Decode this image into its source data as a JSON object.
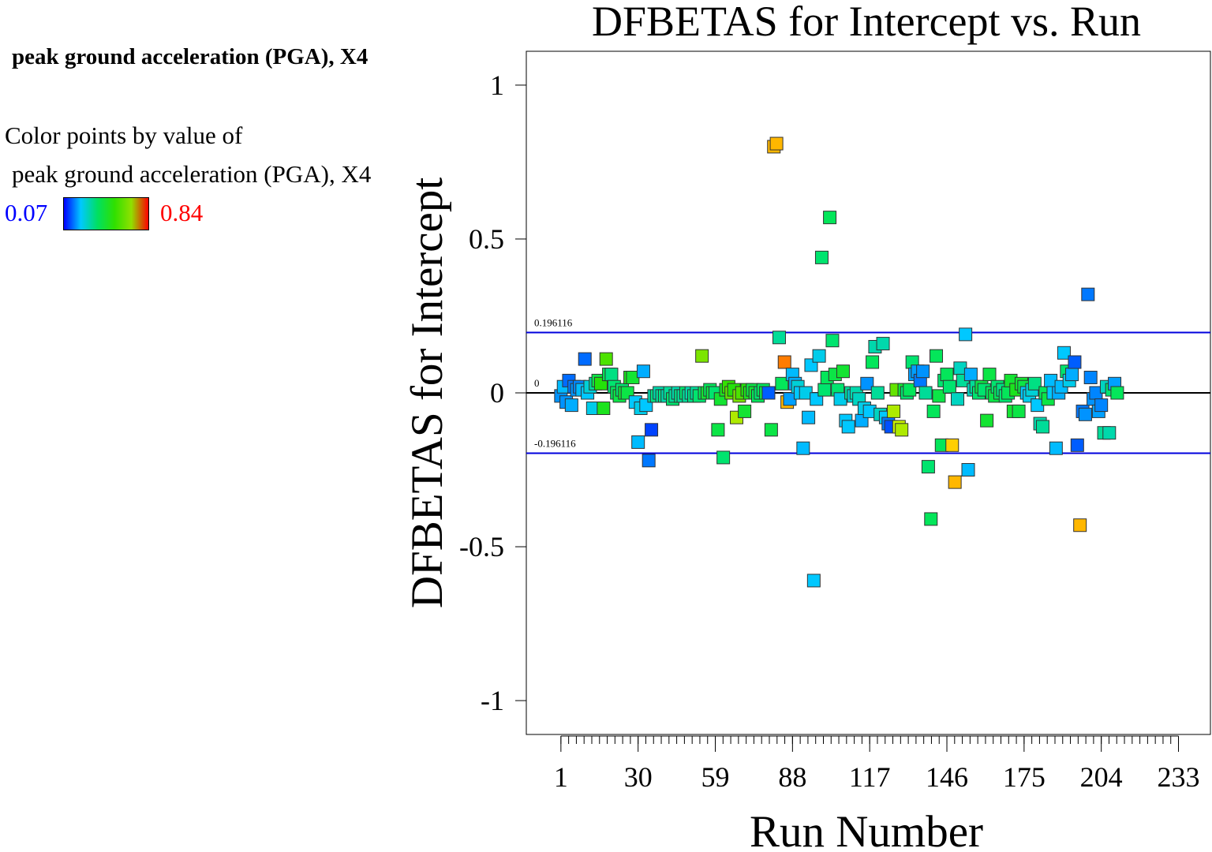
{
  "legend": {
    "title": "peak ground acceleration (PGA), X4",
    "desc_line1": "Color points by value of",
    "desc_line2": "peak ground acceleration (PGA), X4",
    "min_label": "0.07",
    "max_label": "0.84",
    "min_value": 0.07,
    "max_value": 0.84,
    "min_color": "#0000ff",
    "max_color": "#ff0000",
    "gradient_stops": [
      "#0000ff",
      "#00c8ff",
      "#00e060",
      "#30e000",
      "#90e000",
      "#ff0000"
    ]
  },
  "chart_data": {
    "type": "scatter",
    "title": "DFBETAS for Intercept vs. Run",
    "xlabel": "Run Number",
    "ylabel": "DFBETAS for Intercept",
    "xlim": [
      -12,
      245
    ],
    "ylim": [
      -1.11,
      1.11
    ],
    "x_ticks": [
      1,
      30,
      59,
      88,
      117,
      146,
      175,
      204,
      233
    ],
    "x_tick_labels": [
      "1",
      "30",
      "59",
      "88",
      "117",
      "146",
      "175",
      "204",
      "233"
    ],
    "y_ticks": [
      1,
      0.5,
      0,
      -0.5,
      -1
    ],
    "y_tick_labels": [
      "1",
      "0.5",
      "0",
      "-0.5",
      "-1"
    ],
    "reference_lines": [
      {
        "value": 0.196116,
        "label": "0.196116",
        "color": "#0000dd"
      },
      {
        "value": 0,
        "label": "0",
        "color": "#000000"
      },
      {
        "value": -0.196116,
        "label": "-0.196116",
        "color": "#0000dd"
      }
    ],
    "points": [
      [
        1,
        -0.01,
        0.22
      ],
      [
        2,
        0.02,
        0.28
      ],
      [
        3,
        -0.03,
        0.22
      ],
      [
        4,
        0.04,
        0.16
      ],
      [
        5,
        -0.04,
        0.26
      ],
      [
        6,
        0.02,
        0.18
      ],
      [
        7,
        0.01,
        0.22
      ],
      [
        8,
        0.02,
        0.2
      ],
      [
        9,
        0.01,
        0.28
      ],
      [
        10,
        0.11,
        0.16
      ],
      [
        11,
        0.0,
        0.3
      ],
      [
        12,
        0.02,
        0.34
      ],
      [
        13,
        -0.05,
        0.32
      ],
      [
        14,
        0.03,
        0.4
      ],
      [
        15,
        0.04,
        0.48
      ],
      [
        16,
        0.03,
        0.54
      ],
      [
        17,
        -0.05,
        0.52
      ],
      [
        18,
        0.11,
        0.58
      ],
      [
        19,
        0.06,
        0.46
      ],
      [
        20,
        0.06,
        0.42
      ],
      [
        21,
        0.02,
        0.44
      ],
      [
        22,
        0.0,
        0.46
      ],
      [
        23,
        -0.01,
        0.48
      ],
      [
        24,
        0.01,
        0.44
      ],
      [
        25,
        0.0,
        0.5
      ],
      [
        26,
        0.0,
        0.48
      ],
      [
        27,
        0.05,
        0.52
      ],
      [
        28,
        0.05,
        0.5
      ],
      [
        29,
        -0.03,
        0.3
      ],
      [
        30,
        -0.16,
        0.28
      ],
      [
        31,
        -0.05,
        0.32
      ],
      [
        32,
        0.07,
        0.26
      ],
      [
        33,
        -0.04,
        0.3
      ],
      [
        34,
        -0.22,
        0.18
      ],
      [
        35,
        -0.12,
        0.1
      ],
      [
        36,
        -0.01,
        0.38
      ],
      [
        37,
        -0.01,
        0.42
      ],
      [
        38,
        0.0,
        0.38
      ],
      [
        39,
        -0.01,
        0.4
      ],
      [
        40,
        -0.01,
        0.42
      ],
      [
        41,
        -0.01,
        0.38
      ],
      [
        42,
        0.0,
        0.4
      ],
      [
        43,
        -0.02,
        0.44
      ],
      [
        44,
        -0.01,
        0.4
      ],
      [
        45,
        0.0,
        0.38
      ],
      [
        46,
        -0.01,
        0.42
      ],
      [
        47,
        -0.01,
        0.4
      ],
      [
        48,
        0.0,
        0.44
      ],
      [
        49,
        -0.01,
        0.4
      ],
      [
        50,
        0.0,
        0.38
      ],
      [
        51,
        -0.01,
        0.42
      ],
      [
        52,
        0.0,
        0.4
      ],
      [
        53,
        -0.01,
        0.44
      ],
      [
        54,
        0.12,
        0.62
      ],
      [
        55,
        0.0,
        0.46
      ],
      [
        56,
        0.0,
        0.5
      ],
      [
        57,
        0.01,
        0.46
      ],
      [
        58,
        0.0,
        0.48
      ],
      [
        59,
        0.0,
        0.44
      ],
      [
        60,
        -0.12,
        0.48
      ],
      [
        61,
        -0.02,
        0.5
      ],
      [
        62,
        -0.21,
        0.44
      ],
      [
        63,
        0.01,
        0.52
      ],
      [
        64,
        0.02,
        0.56
      ],
      [
        65,
        0.0,
        0.6
      ],
      [
        66,
        0.01,
        0.54
      ],
      [
        67,
        -0.08,
        0.66
      ],
      [
        68,
        -0.01,
        0.62
      ],
      [
        69,
        0.0,
        0.58
      ],
      [
        70,
        -0.06,
        0.5
      ],
      [
        71,
        0.01,
        0.54
      ],
      [
        72,
        0.0,
        0.52
      ],
      [
        73,
        0.01,
        0.48
      ],
      [
        74,
        0.0,
        0.5
      ],
      [
        75,
        -0.01,
        0.46
      ],
      [
        76,
        0.0,
        0.44
      ],
      [
        77,
        0.01,
        0.46
      ],
      [
        78,
        0.0,
        0.48
      ],
      [
        79,
        0.0,
        0.14
      ],
      [
        80,
        -0.12,
        0.48
      ],
      [
        81,
        0.8,
        0.78
      ],
      [
        82,
        0.81,
        0.78
      ],
      [
        83,
        0.18,
        0.4
      ],
      [
        84,
        0.03,
        0.46
      ],
      [
        85,
        0.1,
        0.83
      ],
      [
        86,
        -0.03,
        0.78
      ],
      [
        87,
        -0.02,
        0.24
      ],
      [
        88,
        0.06,
        0.28
      ],
      [
        89,
        0.03,
        0.26
      ],
      [
        90,
        0.02,
        0.34
      ],
      [
        91,
        0.0,
        0.3
      ],
      [
        92,
        -0.18,
        0.28
      ],
      [
        93,
        0.0,
        0.32
      ],
      [
        94,
        -0.08,
        0.28
      ],
      [
        95,
        0.09,
        0.3
      ],
      [
        96,
        -0.61,
        0.3
      ],
      [
        97,
        -0.02,
        0.3
      ],
      [
        98,
        0.12,
        0.32
      ],
      [
        99,
        0.44,
        0.44
      ],
      [
        100,
        0.01,
        0.44
      ],
      [
        101,
        0.05,
        0.46
      ],
      [
        102,
        0.57,
        0.46
      ],
      [
        103,
        0.17,
        0.44
      ],
      [
        104,
        0.06,
        0.48
      ],
      [
        105,
        0.01,
        0.44
      ],
      [
        106,
        -0.02,
        0.32
      ],
      [
        107,
        0.07,
        0.5
      ],
      [
        108,
        -0.09,
        0.3
      ],
      [
        109,
        -0.11,
        0.3
      ],
      [
        110,
        0.0,
        0.4
      ],
      [
        111,
        -0.01,
        0.34
      ],
      [
        112,
        0.0,
        0.38
      ],
      [
        113,
        -0.02,
        0.36
      ],
      [
        114,
        -0.09,
        0.26
      ],
      [
        115,
        -0.05,
        0.32
      ],
      [
        116,
        0.03,
        0.22
      ],
      [
        117,
        -0.06,
        0.3
      ],
      [
        118,
        0.1,
        0.46
      ],
      [
        119,
        0.15,
        0.38
      ],
      [
        120,
        0.0,
        0.4
      ],
      [
        121,
        -0.07,
        0.36
      ],
      [
        122,
        0.16,
        0.38
      ],
      [
        123,
        -0.08,
        0.3
      ],
      [
        124,
        -0.1,
        0.18
      ],
      [
        125,
        -0.11,
        0.12
      ],
      [
        126,
        -0.06,
        0.66
      ],
      [
        127,
        0.01,
        0.6
      ],
      [
        128,
        -0.11,
        0.68
      ],
      [
        129,
        -0.12,
        0.66
      ],
      [
        130,
        0.01,
        0.5
      ],
      [
        131,
        0.0,
        0.44
      ],
      [
        132,
        0.01,
        0.46
      ],
      [
        133,
        0.1,
        0.44
      ],
      [
        134,
        0.06,
        0.24
      ],
      [
        135,
        0.07,
        0.24
      ],
      [
        136,
        0.04,
        0.18
      ],
      [
        137,
        0.07,
        0.22
      ],
      [
        138,
        0.0,
        0.4
      ],
      [
        139,
        -0.24,
        0.44
      ],
      [
        140,
        -0.41,
        0.46
      ],
      [
        141,
        -0.06,
        0.46
      ],
      [
        142,
        0.12,
        0.46
      ],
      [
        143,
        -0.01,
        0.48
      ],
      [
        144,
        -0.17,
        0.46
      ],
      [
        145,
        0.04,
        0.44
      ],
      [
        146,
        0.06,
        0.46
      ],
      [
        147,
        0.02,
        0.44
      ],
      [
        148,
        -0.17,
        0.76
      ],
      [
        149,
        -0.29,
        0.78
      ],
      [
        150,
        -0.02,
        0.36
      ],
      [
        151,
        0.08,
        0.36
      ],
      [
        152,
        0.04,
        0.4
      ],
      [
        153,
        0.19,
        0.3
      ],
      [
        154,
        -0.25,
        0.28
      ],
      [
        155,
        0.06,
        0.26
      ],
      [
        156,
        0.01,
        0.36
      ],
      [
        157,
        0.02,
        0.4
      ],
      [
        158,
        0.0,
        0.44
      ],
      [
        159,
        0.02,
        0.48
      ],
      [
        160,
        0.01,
        0.44
      ],
      [
        161,
        -0.09,
        0.5
      ],
      [
        162,
        0.06,
        0.48
      ],
      [
        163,
        0.0,
        0.46
      ],
      [
        164,
        -0.01,
        0.48
      ],
      [
        165,
        0.02,
        0.44
      ],
      [
        166,
        0.0,
        0.46
      ],
      [
        167,
        0.01,
        0.42
      ],
      [
        168,
        -0.01,
        0.44
      ],
      [
        169,
        0.0,
        0.46
      ],
      [
        170,
        0.04,
        0.5
      ],
      [
        171,
        -0.06,
        0.5
      ],
      [
        172,
        0.01,
        0.52
      ],
      [
        173,
        -0.06,
        0.48
      ],
      [
        174,
        0.03,
        0.5
      ],
      [
        175,
        0.02,
        0.48
      ],
      [
        176,
        0.0,
        0.3
      ],
      [
        177,
        -0.01,
        0.32
      ],
      [
        178,
        0.01,
        0.34
      ],
      [
        179,
        0.03,
        0.42
      ],
      [
        180,
        -0.04,
        0.3
      ],
      [
        181,
        -0.1,
        0.38
      ],
      [
        182,
        -0.11,
        0.4
      ],
      [
        183,
        0.0,
        0.46
      ],
      [
        184,
        -0.02,
        0.48
      ],
      [
        185,
        0.04,
        0.28
      ],
      [
        186,
        0.0,
        0.3
      ],
      [
        187,
        -0.18,
        0.28
      ],
      [
        188,
        0.0,
        0.26
      ],
      [
        189,
        0.02,
        0.28
      ],
      [
        190,
        0.13,
        0.3
      ],
      [
        191,
        0.07,
        0.44
      ],
      [
        192,
        0.04,
        0.32
      ],
      [
        193,
        0.06,
        0.26
      ],
      [
        194,
        0.1,
        0.14
      ],
      [
        195,
        -0.17,
        0.14
      ],
      [
        196,
        -0.43,
        0.78
      ],
      [
        197,
        -0.06,
        0.18
      ],
      [
        198,
        -0.07,
        0.22
      ],
      [
        199,
        0.32,
        0.18
      ],
      [
        200,
        0.05,
        0.2
      ],
      [
        201,
        -0.02,
        0.22
      ],
      [
        202,
        0.0,
        0.2
      ],
      [
        203,
        -0.06,
        0.24
      ],
      [
        204,
        -0.04,
        0.2
      ],
      [
        205,
        -0.13,
        0.4
      ],
      [
        206,
        0.02,
        0.36
      ],
      [
        207,
        -0.13,
        0.38
      ],
      [
        208,
        0.01,
        0.44
      ],
      [
        209,
        0.03,
        0.24
      ],
      [
        210,
        0.0,
        0.46
      ]
    ]
  }
}
